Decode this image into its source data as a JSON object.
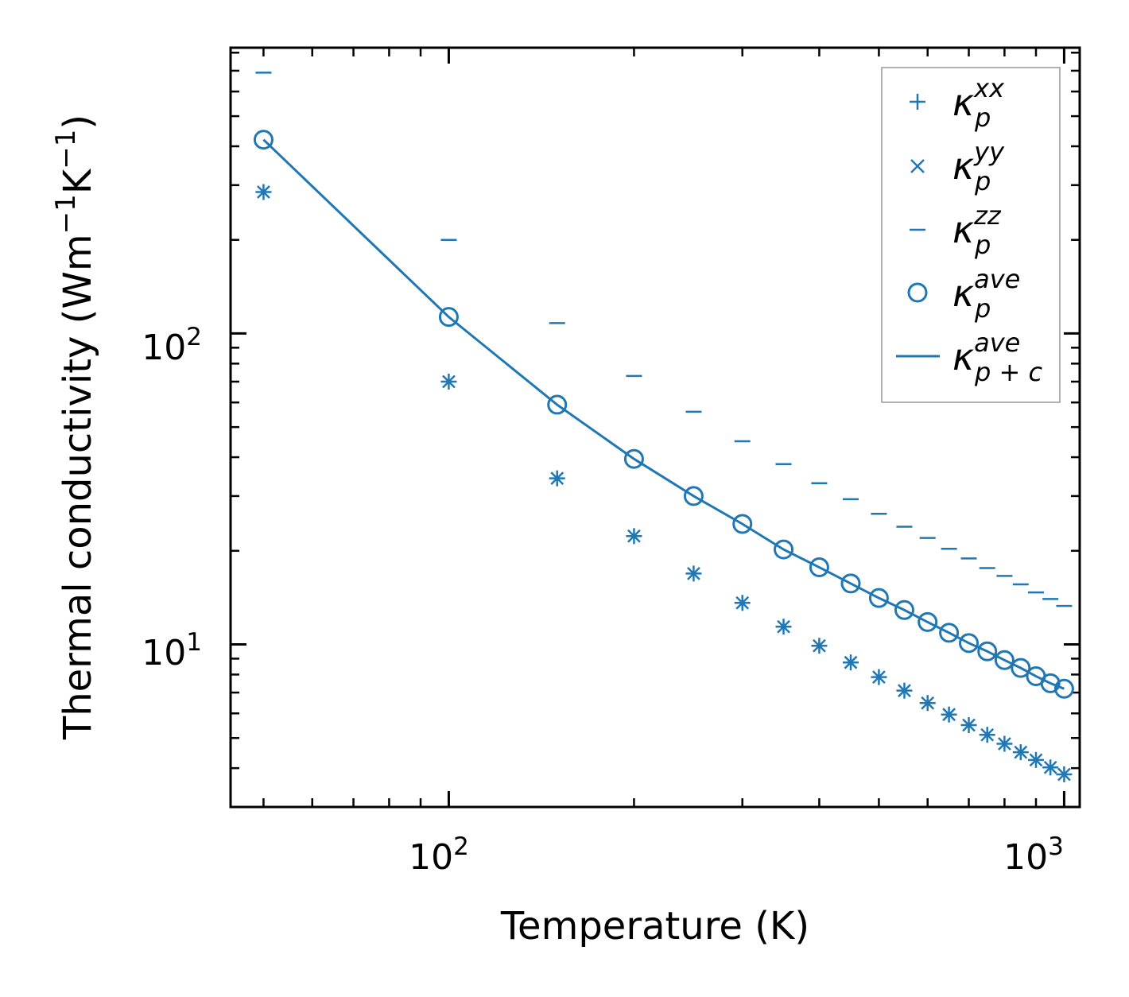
{
  "chart_data": {
    "type": "scatter",
    "title": "",
    "xlabel": "Temperature (K)",
    "ylabel": "Thermal conductivity (Wm",
    "ylabel_unit": {
      "sup1": "−1",
      "mid": "K",
      "sup2": "−1",
      "close": ")"
    },
    "xscale": "log",
    "yscale": "log",
    "xlim": [
      44.2,
      1060
    ],
    "ylim": [
      3.0,
      830
    ],
    "x_ticks": [
      {
        "base": "10",
        "exp": "2",
        "value": 100
      },
      {
        "base": "10",
        "exp": "3",
        "value": 1000
      }
    ],
    "y_ticks": [
      {
        "base": "10",
        "exp": "1",
        "value": 10
      },
      {
        "base": "10",
        "exp": "2",
        "value": 100
      }
    ],
    "color": "#1f77b4",
    "x": [
      50,
      100,
      150,
      200,
      250,
      300,
      350,
      400,
      450,
      500,
      550,
      600,
      650,
      700,
      750,
      800,
      850,
      900,
      950,
      1000
    ],
    "series": [
      {
        "name": "xx",
        "marker": "plus",
        "legend": {
          "main": "κ",
          "sup": "xx",
          "sub": "p"
        },
        "values": [
          285,
          70,
          34.2,
          22.3,
          16.9,
          13.6,
          11.4,
          9.9,
          8.75,
          7.85,
          7.1,
          6.48,
          5.95,
          5.5,
          5.12,
          4.79,
          4.5,
          4.25,
          4.02,
          3.82
        ]
      },
      {
        "name": "yy",
        "marker": "x",
        "legend": {
          "main": "κ",
          "sup": "yy",
          "sub": "p"
        },
        "values": [
          285,
          70,
          34.2,
          22.3,
          16.9,
          13.6,
          11.4,
          9.9,
          8.75,
          7.85,
          7.1,
          6.48,
          5.95,
          5.5,
          5.12,
          4.79,
          4.5,
          4.25,
          4.02,
          3.82
        ]
      },
      {
        "name": "zz",
        "marker": "hline",
        "legend": {
          "main": "κ",
          "sup": "zz",
          "sub": "p"
        },
        "values": [
          690,
          200,
          108,
          73,
          56,
          45,
          38,
          33,
          29.3,
          26.3,
          23.9,
          22,
          20.3,
          18.9,
          17.6,
          16.6,
          15.6,
          14.7,
          14,
          13.3
        ]
      },
      {
        "name": "ave",
        "marker": "circle",
        "legend": {
          "main": "κ",
          "sup": "ave",
          "sub": "p"
        },
        "values": [
          420,
          113,
          59,
          39.5,
          30,
          24.4,
          20.2,
          17.7,
          15.7,
          14.1,
          12.9,
          11.8,
          10.9,
          10.1,
          9.5,
          8.9,
          8.4,
          7.9,
          7.5,
          7.2
        ]
      },
      {
        "name": "ave_pc",
        "marker": "line",
        "legend": {
          "main": "κ",
          "sup": "ave",
          "sub": "p + c"
        },
        "values": [
          420,
          113,
          59,
          39.5,
          30,
          24.4,
          20.2,
          17.7,
          15.7,
          14.1,
          12.9,
          11.8,
          10.9,
          10.1,
          9.5,
          8.9,
          8.4,
          7.9,
          7.5,
          7.2
        ]
      }
    ],
    "legend_position": "top-right",
    "grid": false
  }
}
